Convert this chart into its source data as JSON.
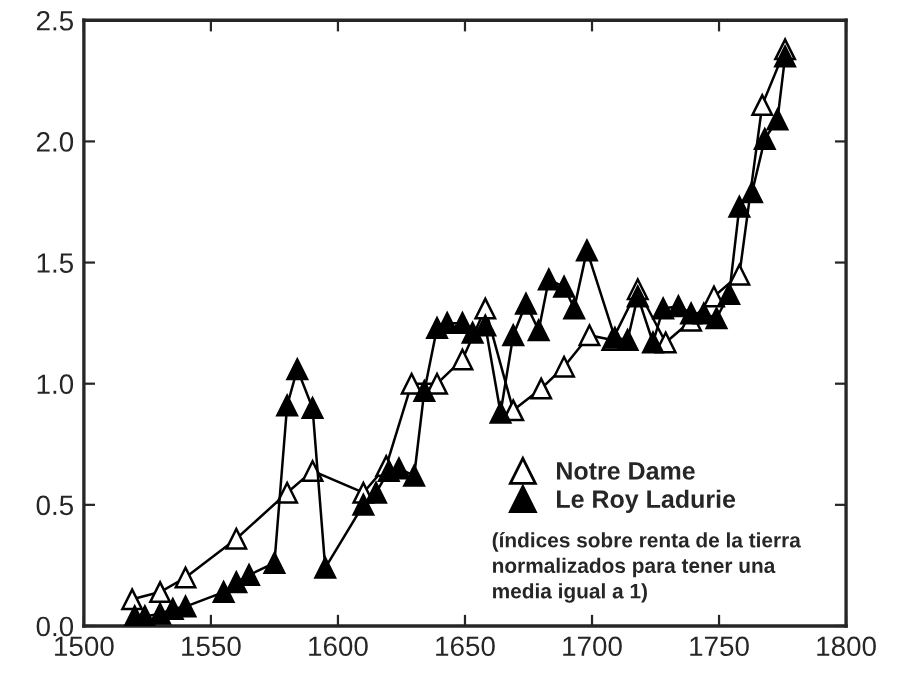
{
  "chart_data": {
    "type": "line",
    "x": [
      1519,
      1530,
      1540,
      1560,
      1580,
      1590,
      1610,
      1619,
      1629,
      1639,
      1649,
      1658,
      1669,
      1680,
      1689,
      1699,
      1708,
      1718,
      1729,
      1739,
      1748,
      1758,
      1767,
      1776
    ],
    "series": [
      {
        "name": "Notre Dame",
        "color": "#ffffff",
        "values": [
          0.11,
          0.14,
          0.2,
          0.36,
          0.55,
          0.64,
          0.55,
          0.66,
          1.0,
          1.0,
          1.1,
          1.31,
          0.89,
          0.98,
          1.07,
          1.2,
          1.18,
          1.39,
          1.17,
          1.26,
          1.36,
          1.45,
          2.15,
          2.38
        ]
      },
      {
        "name": "Le Roy Ladurie",
        "color": "#000000",
        "x": [
          1520,
          1524,
          1530,
          1535,
          1540,
          1555,
          1560,
          1565,
          1575,
          1580,
          1584,
          1590,
          1595,
          1610,
          1615,
          1620,
          1624,
          1630,
          1634,
          1639,
          1643,
          1649,
          1653,
          1658,
          1664,
          1669,
          1674,
          1679,
          1683,
          1689,
          1693,
          1698,
          1709,
          1714,
          1718,
          1724,
          1728,
          1734,
          1739,
          1744,
          1749,
          1754,
          1758,
          1763,
          1768,
          1773,
          1776
        ],
        "values": [
          0.04,
          0.04,
          0.05,
          0.07,
          0.08,
          0.14,
          0.18,
          0.21,
          0.26,
          0.91,
          1.06,
          0.9,
          0.24,
          0.5,
          0.55,
          0.64,
          0.65,
          0.62,
          0.97,
          1.23,
          1.25,
          1.25,
          1.21,
          1.24,
          0.88,
          1.2,
          1.33,
          1.22,
          1.43,
          1.4,
          1.31,
          1.55,
          1.19,
          1.18,
          1.36,
          1.17,
          1.31,
          1.32,
          1.29,
          1.29,
          1.27,
          1.37,
          1.73,
          1.79,
          2.01,
          2.09,
          2.35
        ]
      }
    ],
    "xlim": [
      1500,
      1800
    ],
    "xticks": [
      1500,
      1550,
      1600,
      1650,
      1700,
      1750,
      1800
    ],
    "ylim": [
      0,
      2.5
    ],
    "yticks": [
      {
        "value": 0,
        "label": "0.0"
      },
      {
        "value": 0.5,
        "label": "0.5"
      },
      {
        "value": 1,
        "label": "1.0"
      },
      {
        "value": 1.5,
        "label": "1.5"
      },
      {
        "value": 2,
        "label": "2.0"
      },
      {
        "value": 2.5,
        "label": "2.5"
      }
    ],
    "annotations": [
      "(índices sobre renta de la tierra\nnormalizados para tener una\nmedia igual a 1)"
    ],
    "marker": "triangle",
    "line_style": "solid",
    "grid": false,
    "legend": "lower right"
  }
}
